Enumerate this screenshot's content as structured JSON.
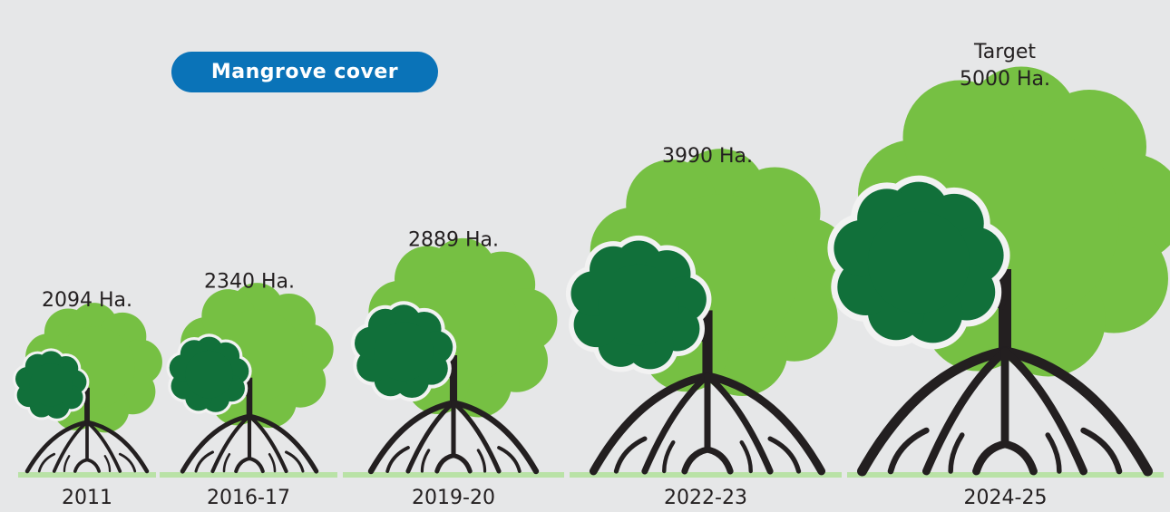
{
  "badge": {
    "label": "Mangrove cover"
  },
  "colors": {
    "background": "#e6e7e8",
    "badge": "#0a73b8",
    "canopy_light": "#76c043",
    "canopy_dark": "#11703a",
    "trunk": "#231f20",
    "ground": "#b9e2a6",
    "text": "#231f20"
  },
  "chart_data": {
    "type": "bar",
    "title": "Mangrove cover",
    "categories": [
      "2011",
      "2016-17",
      "2019-20",
      "2022-23",
      "2024-25"
    ],
    "values": [
      2094,
      2340,
      2889,
      3990,
      5000
    ],
    "value_labels": [
      "2094 Ha.",
      "2340 Ha.",
      "2889 Ha.",
      "3990 Ha.",
      "5000 Ha."
    ],
    "annotations": [
      {
        "category": "2024-25",
        "text": "Target"
      }
    ],
    "unit": "Ha.",
    "mark": "tree-icon",
    "grid": false
  }
}
